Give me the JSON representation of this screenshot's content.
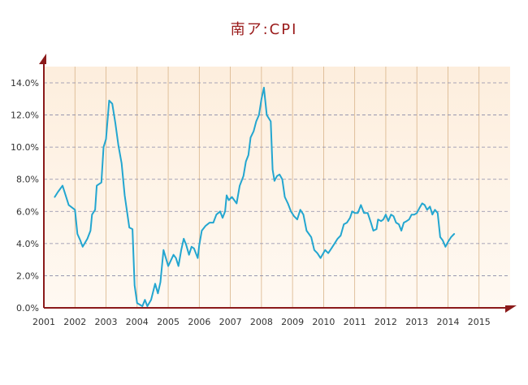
{
  "chart_data": {
    "type": "line",
    "title": "南ア:CPI",
    "xlabel": "",
    "ylabel": "",
    "ylim": [
      0,
      14
    ],
    "xlim": [
      2001.0,
      2016.0
    ],
    "grid": true,
    "legend": "none",
    "x_ticks": [
      "2001",
      "2002",
      "2003",
      "2004",
      "2005",
      "2006",
      "2007",
      "2008",
      "2009",
      "2010",
      "2011",
      "2012",
      "2013",
      "2014",
      "2015"
    ],
    "y_ticks": [
      "0.0%",
      "2.0%",
      "4.0%",
      "6.0%",
      "8.0%",
      "10.0%",
      "12.0%",
      "14.0%"
    ],
    "series": [
      {
        "values": [
          [
            2001.35,
            6.9
          ],
          [
            2001.45,
            7.2
          ],
          [
            2001.6,
            7.6
          ],
          [
            2001.8,
            6.4
          ],
          [
            2002.0,
            6.1
          ],
          [
            2002.08,
            4.6
          ],
          [
            2002.17,
            4.2
          ],
          [
            2002.25,
            3.8
          ],
          [
            2002.4,
            4.3
          ],
          [
            2002.5,
            4.8
          ],
          [
            2002.55,
            5.8
          ],
          [
            2002.65,
            6.1
          ],
          [
            2002.7,
            7.6
          ],
          [
            2002.85,
            7.8
          ],
          [
            2002.92,
            10.0
          ],
          [
            2003.0,
            10.5
          ],
          [
            2003.1,
            12.9
          ],
          [
            2003.2,
            12.7
          ],
          [
            2003.3,
            11.5
          ],
          [
            2003.4,
            10.1
          ],
          [
            2003.5,
            9.0
          ],
          [
            2003.6,
            7.0
          ],
          [
            2003.75,
            5.0
          ],
          [
            2003.85,
            4.9
          ],
          [
            2003.92,
            1.4
          ],
          [
            2004.0,
            0.3
          ],
          [
            2004.17,
            0.1
          ],
          [
            2004.25,
            0.5
          ],
          [
            2004.33,
            0.1
          ],
          [
            2004.45,
            0.5
          ],
          [
            2004.58,
            1.5
          ],
          [
            2004.67,
            0.9
          ],
          [
            2004.75,
            1.6
          ],
          [
            2004.85,
            3.6
          ],
          [
            2005.0,
            2.6
          ],
          [
            2005.17,
            3.3
          ],
          [
            2005.25,
            3.1
          ],
          [
            2005.33,
            2.6
          ],
          [
            2005.42,
            3.6
          ],
          [
            2005.5,
            4.3
          ],
          [
            2005.58,
            3.9
          ],
          [
            2005.67,
            3.3
          ],
          [
            2005.75,
            3.8
          ],
          [
            2005.83,
            3.7
          ],
          [
            2005.95,
            3.1
          ],
          [
            2006.0,
            3.9
          ],
          [
            2006.08,
            4.8
          ],
          [
            2006.2,
            5.1
          ],
          [
            2006.33,
            5.3
          ],
          [
            2006.45,
            5.3
          ],
          [
            2006.55,
            5.8
          ],
          [
            2006.67,
            6.0
          ],
          [
            2006.75,
            5.6
          ],
          [
            2006.83,
            6.0
          ],
          [
            2006.88,
            7.0
          ],
          [
            2006.95,
            6.7
          ],
          [
            2007.05,
            6.9
          ],
          [
            2007.2,
            6.5
          ],
          [
            2007.3,
            7.6
          ],
          [
            2007.42,
            8.2
          ],
          [
            2007.5,
            9.1
          ],
          [
            2007.58,
            9.5
          ],
          [
            2007.65,
            10.6
          ],
          [
            2007.75,
            11.0
          ],
          [
            2007.83,
            11.6
          ],
          [
            2007.92,
            12.0
          ],
          [
            2008.0,
            13.0
          ],
          [
            2008.08,
            13.7
          ],
          [
            2008.17,
            12.0
          ],
          [
            2008.3,
            11.6
          ],
          [
            2008.36,
            8.6
          ],
          [
            2008.42,
            7.9
          ],
          [
            2008.5,
            8.2
          ],
          [
            2008.58,
            8.3
          ],
          [
            2008.67,
            8.0
          ],
          [
            2008.75,
            6.9
          ],
          [
            2008.85,
            6.5
          ],
          [
            2008.95,
            6.0
          ],
          [
            2009.05,
            5.7
          ],
          [
            2009.15,
            5.5
          ],
          [
            2009.25,
            6.1
          ],
          [
            2009.35,
            5.8
          ],
          [
            2009.45,
            4.8
          ],
          [
            2009.6,
            4.4
          ],
          [
            2009.7,
            3.6
          ],
          [
            2009.8,
            3.4
          ],
          [
            2009.9,
            3.1
          ],
          [
            2010.05,
            3.6
          ],
          [
            2010.15,
            3.4
          ],
          [
            2010.25,
            3.7
          ],
          [
            2010.35,
            4.0
          ],
          [
            2010.45,
            4.3
          ],
          [
            2010.55,
            4.5
          ],
          [
            2010.65,
            5.2
          ],
          [
            2010.75,
            5.3
          ],
          [
            2010.85,
            5.6
          ],
          [
            2010.92,
            6.0
          ],
          [
            2011.0,
            5.9
          ],
          [
            2011.1,
            5.9
          ],
          [
            2011.2,
            6.4
          ],
          [
            2011.3,
            5.9
          ],
          [
            2011.42,
            5.9
          ],
          [
            2011.52,
            5.3
          ],
          [
            2011.6,
            4.8
          ],
          [
            2011.7,
            4.9
          ],
          [
            2011.75,
            5.5
          ],
          [
            2011.85,
            5.4
          ],
          [
            2011.92,
            5.5
          ],
          [
            2012.0,
            5.8
          ],
          [
            2012.08,
            5.4
          ],
          [
            2012.17,
            5.8
          ],
          [
            2012.25,
            5.7
          ],
          [
            2012.33,
            5.3
          ],
          [
            2012.42,
            5.2
          ],
          [
            2012.5,
            4.8
          ],
          [
            2012.58,
            5.3
          ],
          [
            2012.67,
            5.4
          ],
          [
            2012.75,
            5.5
          ],
          [
            2012.83,
            5.8
          ],
          [
            2012.92,
            5.8
          ],
          [
            2013.0,
            5.9
          ],
          [
            2013.08,
            6.2
          ],
          [
            2013.17,
            6.5
          ],
          [
            2013.25,
            6.4
          ],
          [
            2013.33,
            6.1
          ],
          [
            2013.42,
            6.3
          ],
          [
            2013.5,
            5.8
          ],
          [
            2013.58,
            6.1
          ],
          [
            2013.67,
            5.9
          ],
          [
            2013.75,
            4.4
          ],
          [
            2013.83,
            4.2
          ],
          [
            2013.92,
            3.8
          ],
          [
            2014.0,
            4.1
          ],
          [
            2014.1,
            4.4
          ],
          [
            2014.2,
            4.6
          ]
        ]
      }
    ]
  }
}
